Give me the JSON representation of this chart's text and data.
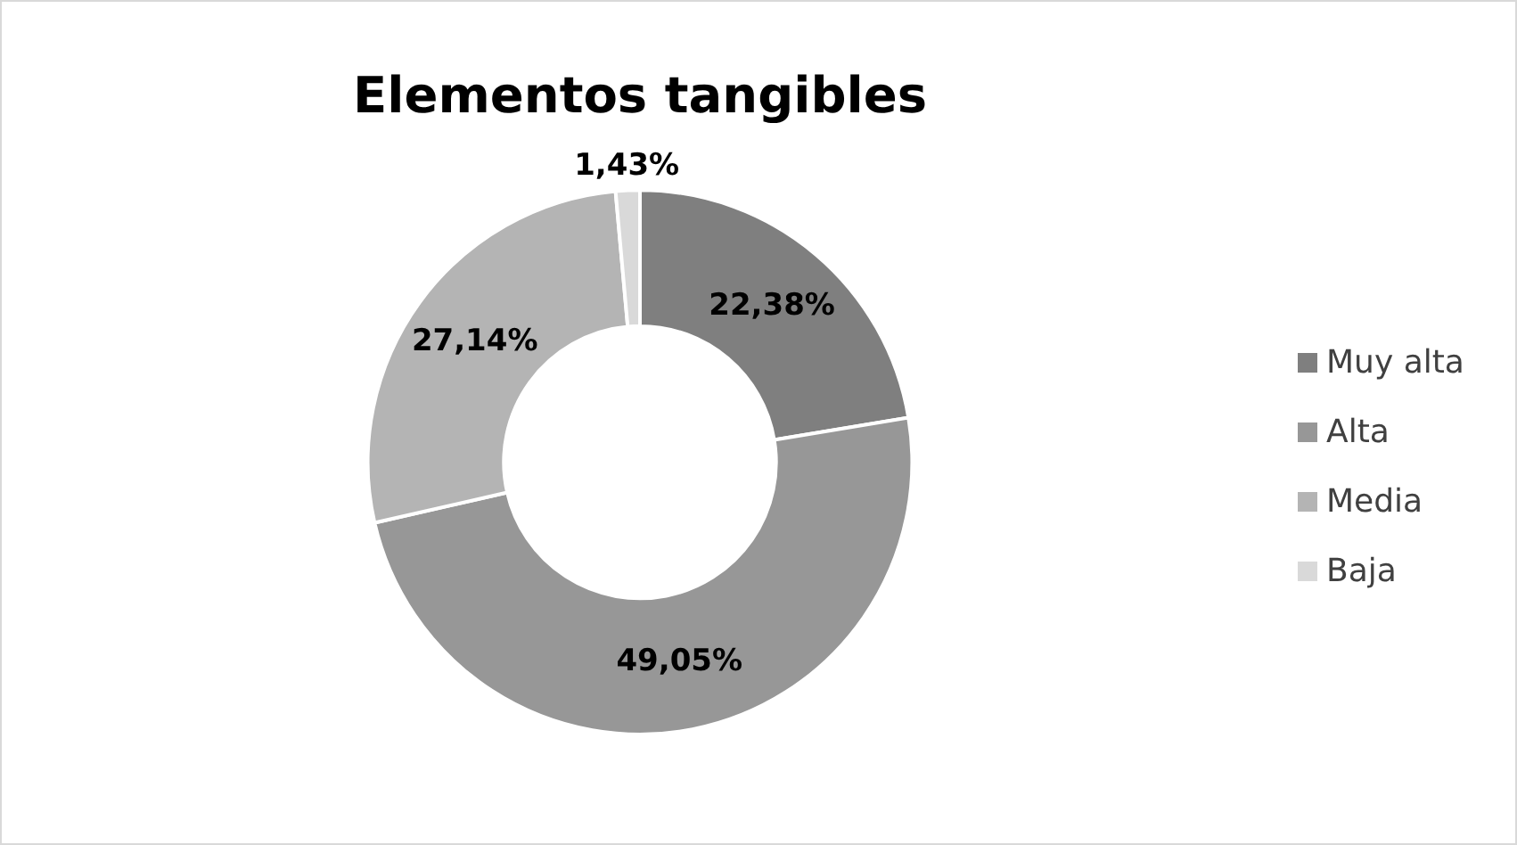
{
  "chart_data": {
    "type": "donut",
    "title": "Elementos tangibles",
    "categories": [
      "Muy alta",
      "Alta",
      "Media",
      "Baja"
    ],
    "values": [
      22.38,
      49.05,
      27.14,
      1.43
    ],
    "value_labels": [
      "22,38%",
      "49,05%",
      "27,14%",
      "1,43%"
    ],
    "colors": [
      "#7f7f7f",
      "#979797",
      "#b4b4b4",
      "#d9d9d9"
    ],
    "legend": "right"
  }
}
